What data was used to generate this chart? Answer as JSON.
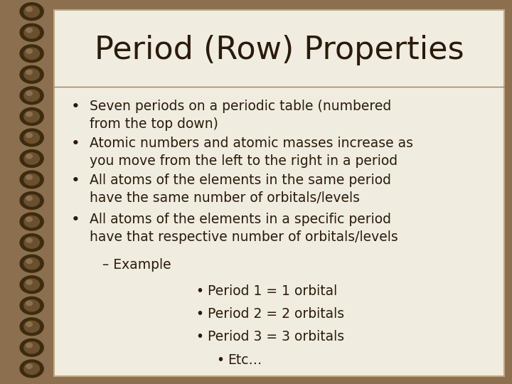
{
  "title": "Period (Row) Properties",
  "bg_outer": "#8B6F4E",
  "bg_inner": "#F0EDE0",
  "title_color": "#2B1A0A",
  "text_color": "#2B1A0A",
  "title_fontsize": 32,
  "body_fontsize": 13.5,
  "title_font": "Comic Sans MS",
  "body_font": "Comic Sans MS",
  "bullet_points": [
    "Seven periods on a periodic table (numbered\nfrom the top down)",
    "Atomic numbers and atomic masses increase as\nyou move from the left to the right in a period",
    "All atoms of the elements in the same period\nhave the same number of orbitals/levels",
    "All atoms of the elements in a specific period\nhave that respective number of orbitals/levels"
  ],
  "sub_bullet": "– Example",
  "sub_sub_bullets": [
    "Period 1 = 1 orbital",
    "Period 2 = 2 orbitals",
    "Period 3 = 3 orbitals",
    "Etc…"
  ],
  "spiral_color": "#6B5030",
  "spiral_dot_color": "#3D2B10",
  "divider_color": "#A08060"
}
